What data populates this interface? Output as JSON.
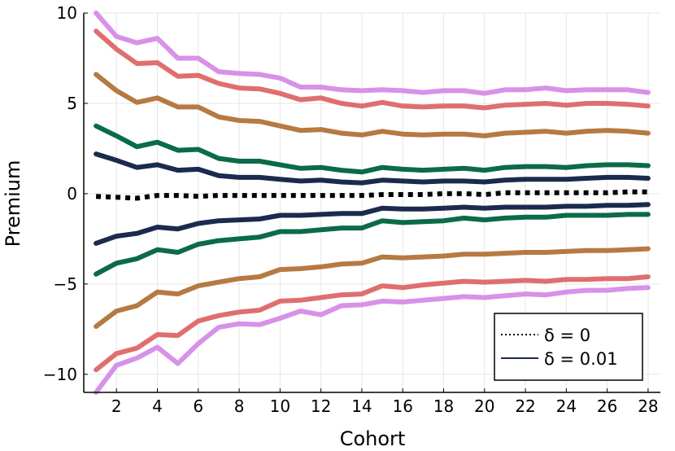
{
  "chart_data": {
    "type": "line",
    "xlabel": "Cohort",
    "ylabel": "Premium",
    "xlim": [
      0.4,
      28.6
    ],
    "ylim": [
      -11,
      10
    ],
    "x_ticks": [
      2,
      4,
      6,
      8,
      10,
      12,
      14,
      16,
      18,
      20,
      22,
      24,
      26,
      28
    ],
    "y_ticks": [
      -10,
      -5,
      0,
      5,
      10
    ],
    "y_tick_labels": [
      "−10",
      "−5",
      "0",
      "5",
      "10"
    ],
    "grid": true,
    "legend_position": "bottom-right",
    "legend": [
      {
        "label": "δ = 0",
        "style": "dotted",
        "color": "#000000"
      },
      {
        "label": "δ = 0.01",
        "style": "solid",
        "color": "#1b2a4e"
      }
    ],
    "x": [
      1,
      2,
      3,
      4,
      5,
      6,
      7,
      8,
      9,
      10,
      11,
      12,
      13,
      14,
      15,
      16,
      17,
      18,
      19,
      20,
      21,
      22,
      23,
      24,
      25,
      26,
      27,
      28
    ],
    "series": [
      {
        "name": "violet-upper",
        "color": "#d891e8",
        "dash": "solid",
        "values": [
          10.0,
          8.7,
          8.35,
          8.6,
          7.5,
          7.5,
          6.75,
          6.65,
          6.6,
          6.4,
          5.9,
          5.9,
          5.75,
          5.7,
          5.75,
          5.7,
          5.6,
          5.7,
          5.7,
          5.55,
          5.75,
          5.75,
          5.85,
          5.7,
          5.75,
          5.75,
          5.75,
          5.6
        ]
      },
      {
        "name": "red-upper",
        "color": "#e06e6e",
        "dash": "solid",
        "values": [
          9.0,
          8.0,
          7.2,
          7.25,
          6.5,
          6.55,
          6.1,
          5.85,
          5.8,
          5.55,
          5.2,
          5.3,
          5.0,
          4.85,
          5.05,
          4.85,
          4.8,
          4.85,
          4.85,
          4.75,
          4.9,
          4.95,
          5.0,
          4.9,
          5.0,
          5.0,
          4.95,
          4.85
        ]
      },
      {
        "name": "brown-upper",
        "color": "#b57a42",
        "dash": "solid",
        "values": [
          6.6,
          5.7,
          5.05,
          5.3,
          4.8,
          4.8,
          4.25,
          4.05,
          4.0,
          3.75,
          3.5,
          3.55,
          3.35,
          3.25,
          3.45,
          3.3,
          3.25,
          3.3,
          3.3,
          3.2,
          3.35,
          3.4,
          3.45,
          3.35,
          3.45,
          3.5,
          3.45,
          3.35
        ]
      },
      {
        "name": "green-upper",
        "color": "#0b6b49",
        "dash": "solid",
        "values": [
          3.75,
          3.2,
          2.6,
          2.85,
          2.4,
          2.45,
          1.95,
          1.8,
          1.8,
          1.6,
          1.4,
          1.45,
          1.3,
          1.2,
          1.45,
          1.35,
          1.3,
          1.35,
          1.4,
          1.3,
          1.45,
          1.5,
          1.5,
          1.45,
          1.55,
          1.6,
          1.6,
          1.55
        ]
      },
      {
        "name": "navy-upper",
        "color": "#1b2a4e",
        "dash": "solid",
        "values": [
          2.2,
          1.85,
          1.45,
          1.6,
          1.3,
          1.35,
          1.0,
          0.9,
          0.9,
          0.8,
          0.7,
          0.75,
          0.65,
          0.6,
          0.75,
          0.7,
          0.65,
          0.7,
          0.7,
          0.65,
          0.75,
          0.8,
          0.8,
          0.8,
          0.85,
          0.9,
          0.9,
          0.85
        ]
      },
      {
        "name": "delta0-black",
        "color": "#000000",
        "dash": "dotted",
        "values": [
          -0.15,
          -0.2,
          -0.25,
          -0.1,
          -0.1,
          -0.15,
          -0.1,
          -0.1,
          -0.1,
          -0.1,
          -0.1,
          -0.1,
          -0.1,
          -0.1,
          -0.05,
          -0.05,
          -0.05,
          0.0,
          0.0,
          -0.05,
          0.05,
          0.05,
          0.05,
          0.05,
          0.05,
          0.05,
          0.1,
          0.1
        ]
      },
      {
        "name": "navy-lower",
        "color": "#1b2a4e",
        "dash": "solid",
        "values": [
          -2.75,
          -2.35,
          -2.2,
          -1.85,
          -1.95,
          -1.65,
          -1.5,
          -1.45,
          -1.4,
          -1.2,
          -1.2,
          -1.15,
          -1.1,
          -1.1,
          -0.8,
          -0.85,
          -0.85,
          -0.8,
          -0.75,
          -0.8,
          -0.75,
          -0.75,
          -0.75,
          -0.7,
          -0.7,
          -0.65,
          -0.65,
          -0.6
        ]
      },
      {
        "name": "green-lower",
        "color": "#0b6b49",
        "dash": "solid",
        "values": [
          -4.45,
          -3.85,
          -3.6,
          -3.1,
          -3.25,
          -2.8,
          -2.6,
          -2.5,
          -2.4,
          -2.1,
          -2.1,
          -2.0,
          -1.9,
          -1.9,
          -1.5,
          -1.6,
          -1.55,
          -1.5,
          -1.35,
          -1.45,
          -1.35,
          -1.3,
          -1.3,
          -1.2,
          -1.2,
          -1.2,
          -1.15,
          -1.15
        ]
      },
      {
        "name": "brown-lower",
        "color": "#b57a42",
        "dash": "solid",
        "values": [
          -7.35,
          -6.5,
          -6.2,
          -5.45,
          -5.55,
          -5.1,
          -4.9,
          -4.7,
          -4.6,
          -4.2,
          -4.15,
          -4.05,
          -3.9,
          -3.85,
          -3.5,
          -3.55,
          -3.5,
          -3.45,
          -3.35,
          -3.35,
          -3.3,
          -3.25,
          -3.25,
          -3.2,
          -3.15,
          -3.15,
          -3.1,
          -3.05
        ]
      },
      {
        "name": "red-lower",
        "color": "#e06e6e",
        "dash": "solid",
        "values": [
          -9.75,
          -8.85,
          -8.55,
          -7.8,
          -7.85,
          -7.05,
          -6.75,
          -6.55,
          -6.45,
          -5.95,
          -5.9,
          -5.75,
          -5.6,
          -5.55,
          -5.1,
          -5.2,
          -5.05,
          -4.95,
          -4.85,
          -4.9,
          -4.85,
          -4.8,
          -4.85,
          -4.75,
          -4.75,
          -4.7,
          -4.7,
          -4.6
        ]
      },
      {
        "name": "violet-lower",
        "color": "#d891e8",
        "dash": "solid",
        "values": [
          -11.0,
          -9.5,
          -9.1,
          -8.5,
          -9.4,
          -8.3,
          -7.4,
          -7.2,
          -7.25,
          -6.9,
          -6.5,
          -6.7,
          -6.2,
          -6.15,
          -5.95,
          -6.0,
          -5.9,
          -5.8,
          -5.7,
          -5.75,
          -5.65,
          -5.55,
          -5.6,
          -5.45,
          -5.35,
          -5.35,
          -5.25,
          -5.2
        ]
      }
    ]
  }
}
